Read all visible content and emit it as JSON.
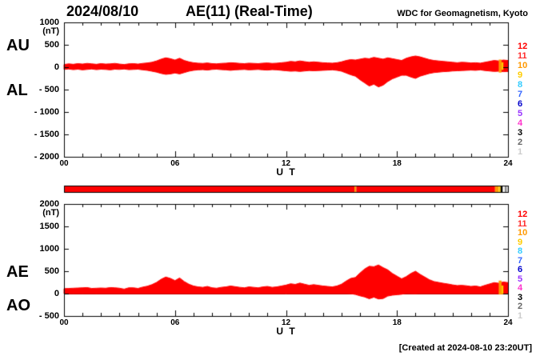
{
  "header": {
    "date": "2024/08/10",
    "title": "AE(11) (Real-Time)",
    "source": "WDC for Geomagnetism, Kyoto"
  },
  "footer": {
    "created": "[Created at 2024-08-10 23:20UT]"
  },
  "station_legend": [
    {
      "label": "12",
      "color": "#ff0000"
    },
    {
      "label": "11",
      "color": "#ff2a2a"
    },
    {
      "label": "10",
      "color": "#ff9900"
    },
    {
      "label": "9",
      "color": "#ffcc00"
    },
    {
      "label": "8",
      "color": "#33ccff"
    },
    {
      "label": "7",
      "color": "#3366ff"
    },
    {
      "label": "6",
      "color": "#0000cc"
    },
    {
      "label": "5",
      "color": "#9933ff"
    },
    {
      "label": "4",
      "color": "#ff33cc"
    },
    {
      "label": "3",
      "color": "#000000"
    },
    {
      "label": "2",
      "color": "#666666"
    },
    {
      "label": "1",
      "color": "#cccccc"
    }
  ],
  "station_bar": {
    "segments": [
      {
        "from": 0,
        "to": 15.7,
        "color": "#ff0000"
      },
      {
        "from": 15.7,
        "to": 15.8,
        "color": "#ff9900"
      },
      {
        "from": 15.8,
        "to": 23.3,
        "color": "#ff0000"
      },
      {
        "from": 23.3,
        "to": 23.5,
        "color": "#ff9900"
      },
      {
        "from": 23.5,
        "to": 23.6,
        "color": "#ffcc00"
      },
      {
        "from": 23.6,
        "to": 23.72,
        "color": "#000000"
      },
      {
        "from": 23.72,
        "to": 23.82,
        "color": "#ffffff"
      },
      {
        "from": 23.82,
        "to": 23.92,
        "color": "#888888"
      },
      {
        "from": 23.92,
        "to": 24,
        "color": "#cccccc"
      }
    ]
  },
  "chart_data": [
    {
      "type": "area",
      "title": "AU / AL indices",
      "left_labels": [
        "AU",
        "AL"
      ],
      "y_unit": "(nT)",
      "xlabel": "U T",
      "xlim": [
        0,
        24
      ],
      "ylim": [
        -2000,
        1000
      ],
      "x_step_hours": 0.25,
      "color": "#ff0000",
      "yticks": [
        {
          "v": 1000,
          "label": "1000"
        },
        {
          "v": 500,
          "label": "500"
        },
        {
          "v": 0,
          "label": "0"
        },
        {
          "v": -500,
          "label": "- 500"
        },
        {
          "v": -1000,
          "label": "- 1000"
        },
        {
          "v": -1500,
          "label": "- 1500"
        },
        {
          "v": -2000,
          "label": "- 2000"
        }
      ],
      "xticks": [
        {
          "t": 0,
          "label": "00"
        },
        {
          "t": 6,
          "label": "06"
        },
        {
          "t": 12,
          "label": "12"
        },
        {
          "t": 18,
          "label": "18"
        },
        {
          "t": 24,
          "label": "24"
        }
      ],
      "end_markers": [
        {
          "from": 23.5,
          "to": 23.65,
          "color": "#ff9900",
          "v0": -120,
          "v1": 170
        },
        {
          "from": 23.65,
          "to": 23.75,
          "color": "#ffcc00",
          "v0": -60,
          "v1": 110
        }
      ],
      "series": [
        {
          "name": "AU",
          "values": [
            60,
            75,
            65,
            80,
            70,
            85,
            75,
            65,
            80,
            70,
            75,
            85,
            70,
            60,
            75,
            80,
            70,
            85,
            95,
            110,
            140,
            180,
            210,
            190,
            160,
            200,
            150,
            120,
            100,
            90,
            85,
            95,
            80,
            75,
            85,
            90,
            100,
            95,
            85,
            80,
            90,
            85,
            80,
            90,
            95,
            85,
            90,
            100,
            110,
            130,
            120,
            140,
            125,
            110,
            120,
            110,
            100,
            95,
            90,
            100,
            120,
            150,
            170,
            160,
            180,
            200,
            190,
            220,
            200,
            180,
            210,
            190,
            170,
            150,
            200,
            230,
            250,
            230,
            200,
            170,
            150,
            140,
            130,
            120,
            110,
            100,
            110,
            105,
            95,
            100,
            90,
            110,
            130,
            150,
            140,
            160,
            150
          ]
        },
        {
          "name": "AL",
          "values": [
            -50,
            -40,
            -55,
            -45,
            -60,
            -50,
            -40,
            -55,
            -45,
            -50,
            -60,
            -45,
            -50,
            -40,
            -55,
            -50,
            -45,
            -60,
            -70,
            -90,
            -110,
            -140,
            -160,
            -150,
            -130,
            -150,
            -120,
            -90,
            -70,
            -60,
            -55,
            -65,
            -50,
            -45,
            -55,
            -60,
            -70,
            -60,
            -55,
            -50,
            -60,
            -55,
            -50,
            -60,
            -65,
            -55,
            -60,
            -70,
            -80,
            -90,
            -85,
            -95,
            -85,
            -75,
            -80,
            -75,
            -70,
            -65,
            -60,
            -70,
            -90,
            -130,
            -170,
            -200,
            -280,
            -350,
            -420,
            -380,
            -440,
            -400,
            -320,
            -260,
            -220,
            -180,
            -180,
            -220,
            -250,
            -200,
            -170,
            -140,
            -120,
            -110,
            -100,
            -95,
            -85,
            -80,
            -75,
            -70,
            -65,
            -70,
            -60,
            -75,
            -85,
            -95,
            -90,
            -100,
            -95
          ]
        }
      ]
    },
    {
      "type": "area",
      "title": "AE / AO indices",
      "left_labels": [
        "AE",
        "AO"
      ],
      "y_unit": "(nT)",
      "xlabel": "U T",
      "xlim": [
        0,
        24
      ],
      "ylim": [
        -500,
        2000
      ],
      "x_step_hours": 0.25,
      "color": "#ff0000",
      "yticks": [
        {
          "v": 2000,
          "label": "2000"
        },
        {
          "v": 1500,
          "label": "1500"
        },
        {
          "v": 1000,
          "label": "1000"
        },
        {
          "v": 500,
          "label": "500"
        },
        {
          "v": 0,
          "label": "0"
        },
        {
          "v": -500,
          "label": "- 500"
        }
      ],
      "xticks": [
        {
          "t": 0,
          "label": "00"
        },
        {
          "t": 6,
          "label": "06"
        },
        {
          "t": 12,
          "label": "12"
        },
        {
          "t": 18,
          "label": "18"
        },
        {
          "t": 24,
          "label": "24"
        }
      ],
      "end_markers": [
        {
          "from": 23.5,
          "to": 23.65,
          "color": "#ff9900",
          "v0": -20,
          "v1": 290
        },
        {
          "from": 23.65,
          "to": 23.75,
          "color": "#ffcc00",
          "v0": -10,
          "v1": 180
        }
      ],
      "series": [
        {
          "name": "AE",
          "values": [
            110,
            115,
            120,
            125,
            130,
            135,
            115,
            120,
            125,
            120,
            135,
            130,
            120,
            100,
            130,
            130,
            115,
            145,
            165,
            200,
            250,
            320,
            370,
            340,
            290,
            350,
            270,
            210,
            170,
            150,
            140,
            160,
            130,
            120,
            140,
            150,
            170,
            155,
            140,
            130,
            150,
            140,
            130,
            150,
            160,
            140,
            150,
            170,
            190,
            220,
            205,
            235,
            210,
            185,
            200,
            185,
            170,
            160,
            150,
            170,
            210,
            280,
            340,
            360,
            460,
            550,
            610,
            600,
            640,
            580,
            530,
            450,
            390,
            330,
            380,
            450,
            500,
            430,
            370,
            310,
            270,
            250,
            230,
            215,
            195,
            180,
            185,
            175,
            160,
            170,
            150,
            185,
            215,
            245,
            230,
            260,
            245
          ]
        },
        {
          "name": "AO",
          "values": [
            5,
            18,
            5,
            18,
            5,
            18,
            18,
            5,
            18,
            10,
            8,
            20,
            10,
            10,
            10,
            15,
            13,
            13,
            13,
            10,
            15,
            20,
            25,
            20,
            15,
            25,
            15,
            15,
            15,
            15,
            15,
            15,
            15,
            15,
            15,
            15,
            15,
            18,
            15,
            15,
            15,
            15,
            15,
            15,
            15,
            15,
            15,
            15,
            15,
            20,
            18,
            23,
            20,
            18,
            20,
            18,
            15,
            15,
            15,
            15,
            15,
            10,
            0,
            -20,
            -50,
            -75,
            -115,
            -80,
            -120,
            -110,
            -55,
            -35,
            -25,
            -15,
            10,
            5,
            0,
            15,
            15,
            15,
            15,
            15,
            15,
            13,
            13,
            10,
            18,
            18,
            15,
            15,
            15,
            18,
            23,
            28,
            25,
            30,
            28
          ]
        }
      ]
    }
  ]
}
